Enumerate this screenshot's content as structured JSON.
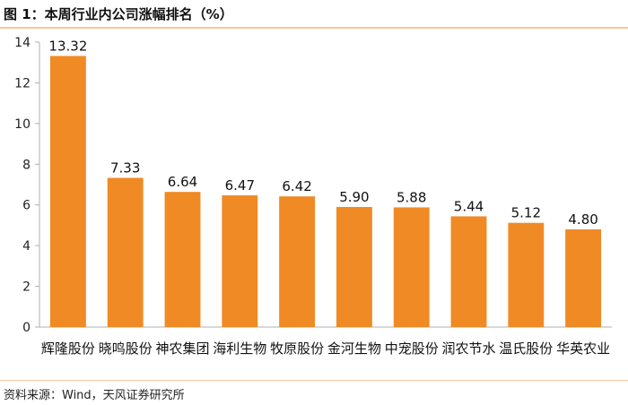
{
  "header": {
    "title": "图 1：本周行业内公司涨幅排名（%）"
  },
  "footer": {
    "source": "资料来源：Wind，天风证券研究所"
  },
  "chart_data": {
    "type": "bar",
    "categories": [
      "辉隆股份",
      "晓鸣股份",
      "神农集团",
      "海利生物",
      "牧原股份",
      "金河生物",
      "中宠股份",
      "润农节水",
      "温氏股份",
      "华英农业"
    ],
    "values": [
      13.32,
      7.33,
      6.64,
      6.47,
      6.42,
      5.9,
      5.88,
      5.44,
      5.12,
      4.8
    ],
    "value_labels": [
      "13.32",
      "7.33",
      "6.64",
      "6.47",
      "6.42",
      "5.90",
      "5.88",
      "5.44",
      "5.12",
      "4.80"
    ],
    "title": "图 1：本周行业内公司涨幅排名（%）",
    "xlabel": "",
    "ylabel": "",
    "ylim": [
      0,
      14
    ],
    "yticks": [
      "0",
      "2",
      "4",
      "6",
      "8",
      "10",
      "12",
      "14"
    ],
    "grid": false,
    "legend": "none",
    "bar_color": "#f08a24"
  }
}
